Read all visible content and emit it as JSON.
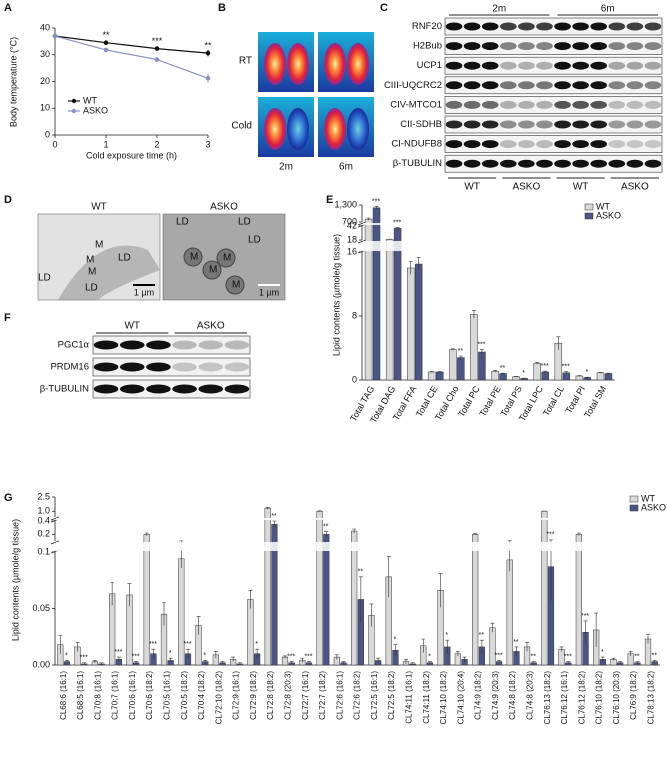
{
  "panel_labels": [
    "A",
    "B",
    "C",
    "D",
    "E",
    "F",
    "G"
  ],
  "chart_data": [
    {
      "type": "line",
      "x": [
        0,
        1,
        2,
        3
      ],
      "xlim": [
        0,
        3
      ],
      "xticks": [
        0,
        1,
        2,
        3
      ],
      "xlabel": "Cold exposure time (h)",
      "ylabel": "Body temperature (°C)",
      "ylim": [
        0,
        40
      ],
      "yticks": [
        0,
        10,
        20,
        30,
        40
      ],
      "series": [
        {
          "name": "WT",
          "color": "#111111",
          "values": [
            37,
            34.5,
            32.3,
            30.6
          ],
          "errors": [
            0.3,
            0.4,
            0.5,
            1.2
          ]
        },
        {
          "name": "ASKO",
          "color": "#8a90c4",
          "values": [
            37,
            31.8,
            28.2,
            21.2
          ],
          "errors": [
            0.3,
            0.5,
            0.8,
            1.6
          ]
        }
      ],
      "significance": [
        null,
        "**",
        "***",
        "**"
      ],
      "legend": "lower-left"
    },
    {
      "type": "bar",
      "ylabel": "Lipid contents (µmole/g tissue)",
      "categories": [
        "Total TAG",
        "Total DAG",
        "Total FFA",
        "Total CE",
        "Total Cho",
        "Total PC",
        "Total PE",
        "Total PS",
        "Total LPC",
        "Total CL",
        "Total PI",
        "Total SM"
      ],
      "y_segments": [
        {
          "ylim": [
            0,
            16
          ],
          "yticks": [
            0,
            8,
            16
          ]
        },
        {
          "ylim": [
            18,
            42
          ],
          "yticks": [
            18,
            42
          ]
        },
        {
          "ylim": [
            700,
            1300
          ],
          "yticks": [
            700,
            {
              "value": 1300,
              "label": "1,300"
            }
          ]
        }
      ],
      "series": [
        {
          "name": "WT",
          "color": "#d9d9d9",
          "values": [
            800,
            19,
            14,
            1,
            3.8,
            8.2,
            1.1,
            0.4,
            2.1,
            4.6,
            0.5,
            0.9
          ],
          "errors": [
            40,
            0.5,
            0.8,
            0.05,
            0.1,
            0.5,
            0.1,
            0.05,
            0.1,
            0.8,
            0.05,
            0.05
          ]
        },
        {
          "name": "ASKO",
          "color": "#4a5688",
          "values": [
            1200,
            38,
            14.5,
            1,
            2.8,
            3.5,
            0.8,
            0.2,
            1,
            0.9,
            0.3,
            0.8
          ],
          "errors": [
            50,
            1.5,
            0.8,
            0.05,
            0.2,
            0.3,
            0.05,
            0.03,
            0.1,
            0.15,
            0.03,
            0.05
          ]
        }
      ],
      "significance": [
        "***",
        "***",
        null,
        null,
        "**",
        "***",
        "**",
        "*",
        "***",
        "***",
        "*",
        null
      ],
      "legend": "upper-right"
    },
    {
      "type": "bar",
      "ylabel": "Lipid contents (µmole/g tissue)",
      "categories": [
        "CL68:6 (16:1)",
        "CL68:5 (16:1)",
        "CL70:8 (16:1)",
        "CL70:7 (16:1)",
        "CL70:6 (16:1)",
        "CL70:6 (18:2)",
        "CL70:5 (16:1)",
        "CL70:5 (18:2)",
        "CL70:4 (18:2)",
        "CL72:10 (18:2)",
        "CL72:9 (16:1)",
        "CL72:9 (18:2)",
        "CL72:8 (18:2)",
        "CL72:8 (20:3)",
        "CL72:7 (16:1)",
        "CL72:7 (18:2)",
        "CL72:6 (16:1)",
        "CL72:6 (18:2)",
        "CL72:5 (16:1)",
        "CL72:5 (18:2)",
        "CL74:11 (16:1)",
        "CL74:11 (18:2)",
        "CL74:10 (18:2)",
        "CL74:10 (20:4)",
        "CL74:9 (18:2)",
        "CL74:9 (20:3)",
        "CL74:8 (18:2)",
        "CL74:8 (20:3)",
        "CL76:13 (18:2)",
        "CL76:12 (16:1)",
        "CL76:12 (18:2)",
        "CL76:10 (18:2)",
        "CL76:10 (20:3)",
        "CL76:9 (18:2)",
        "CL78:13 (18:2)"
      ],
      "y_segments": [
        {
          "ylim": [
            0,
            0.1
          ],
          "yticks": [
            {
              "value": 0,
              "label": "0.00"
            },
            0.05,
            0.1
          ]
        },
        {
          "ylim": [
            0.1,
            0.4
          ],
          "yticks": [
            0.2,
            0.4
          ]
        },
        {
          "ylim": [
            0.4,
            2.5
          ],
          "yticks": [
            {
              "value": 1,
              "label": "1.0"
            },
            2.5
          ]
        }
      ],
      "series": [
        {
          "name": "WT",
          "color": "#d9d9d9",
          "values": [
            0.018,
            0.016,
            0.003,
            0.063,
            0.062,
            0.2,
            0.045,
            0.094,
            0.035,
            0.009,
            0.005,
            0.058,
            1.3,
            0.007,
            0.004,
            1.0,
            0.007,
            0.25,
            0.044,
            0.078,
            0.003,
            0.017,
            0.066,
            0.01,
            0.2,
            0.033,
            0.093,
            0.016,
            1.0,
            0.014,
            0.2,
            0.031,
            0.005,
            0.01,
            0.023
          ],
          "errors": [
            0.008,
            0.004,
            0.001,
            0.01,
            0.01,
            0.02,
            0.01,
            0.008,
            0.008,
            0.003,
            0.002,
            0.008,
            0.1,
            0.001,
            0.002,
            0.05,
            0.002,
            0.03,
            0.01,
            0.018,
            0.002,
            0.006,
            0.015,
            0.002,
            0.01,
            0.004,
            0.01,
            0.004,
            0.02,
            0.002,
            0.02,
            0.015,
            0.001,
            0.002,
            0.004
          ]
        },
        {
          "name": "ASKO",
          "color": "#4a5688",
          "values": [
            0.003,
            0.001,
            0.001,
            0.005,
            0.002,
            0.01,
            0.004,
            0.01,
            0.003,
            0.002,
            0.001,
            0.01,
            0.35,
            0.002,
            0.002,
            0.2,
            0.002,
            0.058,
            0.004,
            0.013,
            0.001,
            0.002,
            0.016,
            0.005,
            0.016,
            0.003,
            0.012,
            0.002,
            0.087,
            0.002,
            0.029,
            0.005,
            0.002,
            0.002,
            0.003
          ],
          "errors": [
            0.001,
            0.001,
            0.001,
            0.002,
            0.001,
            0.004,
            0.002,
            0.004,
            0.001,
            0.001,
            0.001,
            0.004,
            0.05,
            0.001,
            0.001,
            0.04,
            0.001,
            0.02,
            0.002,
            0.005,
            0.001,
            0.001,
            0.006,
            0.002,
            0.006,
            0.001,
            0.004,
            0.001,
            0.03,
            0.001,
            0.01,
            0.002,
            0.001,
            0.001,
            0.001
          ]
        }
      ],
      "significance": [
        "*",
        "***",
        null,
        "***",
        "***",
        "***",
        "*",
        "***",
        "*",
        null,
        null,
        "*",
        "**",
        "***",
        "***",
        "**",
        null,
        "**",
        null,
        "*",
        null,
        "*",
        "*",
        null,
        "**",
        "***",
        "**",
        "**",
        "***",
        "***",
        "***",
        "*",
        null,
        "**",
        "**"
      ],
      "legend": "upper-right"
    }
  ],
  "panel_b": {
    "rows": [
      "RT",
      "Cold"
    ],
    "columns": [
      "2m",
      "6m"
    ]
  },
  "panel_c": {
    "groups": [
      "2m",
      "6m"
    ],
    "proteins": [
      "RNF20",
      "H2Bub",
      "UCP1",
      "CIII-UQCRC2",
      "CIV-MTCO1",
      "CII-SDHB",
      "CI-NDUFB8",
      "β-TUBULIN"
    ],
    "lanes": [
      "WT",
      "ASKO",
      "WT",
      "ASKO"
    ]
  },
  "panel_d": {
    "images": [
      {
        "title": "WT",
        "labels": [
          "LD",
          "M",
          "M",
          "M",
          "LD",
          "LD"
        ],
        "scale": "1 µm"
      },
      {
        "title": "ASKO",
        "labels": [
          "LD",
          "LD",
          "LD",
          "M",
          "M",
          "M",
          "M"
        ],
        "scale": "1 µm"
      }
    ]
  },
  "panel_f": {
    "groups": [
      "WT",
      "ASKO"
    ],
    "proteins": [
      "PGC1α",
      "PRDM16",
      "β-TUBULIN"
    ]
  }
}
